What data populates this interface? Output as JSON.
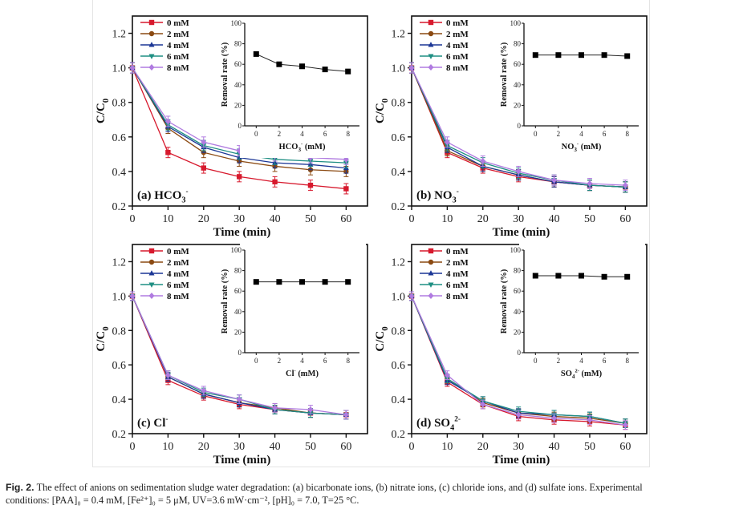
{
  "caption": {
    "label": "Fig. 2.",
    "line1": "The effect of anions on sedimentation sludge water degradation: (a) bicarbonate ions, (b) nitrate ions, (c) chloride ions, and (d) sulfate ions. Experimental",
    "line2": "conditions: [PAA]₀ = 0.4 mM, [Fe²⁺]₀ = 5 μM, UV=3.6 mW·cm⁻², [pH]₀ = 7.0, T=25 °C."
  },
  "series_style": [
    {
      "name": "0 mM",
      "color": "#d7192d",
      "marker": "square"
    },
    {
      "name": "2 mM",
      "color": "#8b4a12",
      "marker": "circle"
    },
    {
      "name": "4 mM",
      "color": "#1c3796",
      "marker": "triangle-up"
    },
    {
      "name": "6 mM",
      "color": "#1f8f83",
      "marker": "triangle-down"
    },
    {
      "name": "8 mM",
      "color": "#b07be0",
      "marker": "diamond"
    }
  ],
  "chart_data": [
    {
      "id": "a",
      "type": "line",
      "panel_label": "(a) HCO",
      "panel_sub": "3",
      "panel_sup": "-",
      "xlabel": "Time (min)",
      "ylabel": "C/C",
      "ylabel_sub": "0",
      "xlim": [
        0,
        66
      ],
      "ylim": [
        0.2,
        1.3
      ],
      "xticks": [
        0,
        10,
        20,
        30,
        40,
        50,
        60
      ],
      "yticks": [
        0.2,
        0.4,
        0.6,
        0.8,
        1.0,
        1.2
      ],
      "ytick_labels": [
        "0.2",
        "0.4",
        "0.6",
        "0.8",
        "1.0",
        "1.2"
      ],
      "legend": [
        "0 mM",
        "2 mM",
        "4 mM",
        "6 mM",
        "8 mM"
      ],
      "legend_position": "top-left",
      "x": [
        0,
        10,
        20,
        30,
        40,
        50,
        60
      ],
      "series": [
        {
          "name": "0 mM",
          "values": [
            1.0,
            0.51,
            0.42,
            0.37,
            0.34,
            0.32,
            0.3
          ]
        },
        {
          "name": "2 mM",
          "values": [
            1.0,
            0.65,
            0.51,
            0.46,
            0.43,
            0.41,
            0.4
          ]
        },
        {
          "name": "4 mM",
          "values": [
            1.0,
            0.66,
            0.54,
            0.48,
            0.45,
            0.44,
            0.42
          ]
        },
        {
          "name": "6 mM",
          "values": [
            1.0,
            0.67,
            0.55,
            0.5,
            0.47,
            0.46,
            0.45
          ]
        },
        {
          "name": "8 mM",
          "values": [
            1.0,
            0.69,
            0.57,
            0.52,
            0.49,
            0.48,
            0.47
          ]
        }
      ],
      "error": 0.03,
      "inset": {
        "type": "line",
        "xlabel": "HCO",
        "xlabel_sub": "3",
        "xlabel_sup": "-",
        "xlabel_tail": " (mM)",
        "ylabel": "Removal rate (%)",
        "xlim": [
          -1,
          9
        ],
        "ylim": [
          0,
          100
        ],
        "xticks": [
          0,
          2,
          4,
          6,
          8
        ],
        "yticks": [
          0,
          20,
          40,
          60,
          80,
          100
        ],
        "x": [
          0,
          2,
          4,
          6,
          8
        ],
        "values": [
          70,
          60,
          58,
          55,
          53
        ]
      }
    },
    {
      "id": "b",
      "type": "line",
      "panel_label": "(b) NO",
      "panel_sub": "3",
      "panel_sup": "-",
      "xlabel": "Time (min)",
      "ylabel": "C/C",
      "ylabel_sub": "0",
      "xlim": [
        0,
        66
      ],
      "ylim": [
        0.2,
        1.3
      ],
      "xticks": [
        0,
        10,
        20,
        30,
        40,
        50,
        60
      ],
      "yticks": [
        0.2,
        0.4,
        0.6,
        0.8,
        1.0,
        1.2
      ],
      "ytick_labels": [
        "0.2",
        "0.4",
        "0.6",
        "0.8",
        "1.0",
        "1.2"
      ],
      "legend": [
        "0 mM",
        "2 mM",
        "4 mM",
        "6 mM",
        "8 mM"
      ],
      "legend_position": "top-left",
      "x": [
        0,
        10,
        20,
        30,
        40,
        50,
        60
      ],
      "series": [
        {
          "name": "0 mM",
          "values": [
            1.0,
            0.51,
            0.42,
            0.37,
            0.34,
            0.32,
            0.31
          ]
        },
        {
          "name": "2 mM",
          "values": [
            1.0,
            0.52,
            0.43,
            0.38,
            0.34,
            0.32,
            0.31
          ]
        },
        {
          "name": "4 mM",
          "values": [
            1.0,
            0.54,
            0.43,
            0.38,
            0.34,
            0.32,
            0.31
          ]
        },
        {
          "name": "6 mM",
          "values": [
            1.0,
            0.55,
            0.45,
            0.39,
            0.35,
            0.32,
            0.31
          ]
        },
        {
          "name": "8 mM",
          "values": [
            1.0,
            0.57,
            0.46,
            0.4,
            0.35,
            0.33,
            0.32
          ]
        }
      ],
      "error": 0.03,
      "inset": {
        "type": "line",
        "xlabel": "NO",
        "xlabel_sub": "3",
        "xlabel_sup": "-",
        "xlabel_tail": " (mM)",
        "ylabel": "Removal rate (%)",
        "xlim": [
          -1,
          9
        ],
        "ylim": [
          0,
          100
        ],
        "xticks": [
          0,
          2,
          4,
          6,
          8
        ],
        "yticks": [
          0,
          20,
          40,
          60,
          80,
          100
        ],
        "x": [
          0,
          2,
          4,
          6,
          8
        ],
        "values": [
          69,
          69,
          69,
          69,
          68
        ]
      }
    },
    {
      "id": "c",
      "type": "line",
      "panel_label": "(c) Cl",
      "panel_sub": "",
      "panel_sup": "-",
      "xlabel": "Time (min)",
      "ylabel": "C/C",
      "ylabel_sub": "0",
      "xlim": [
        0,
        66
      ],
      "ylim": [
        0.2,
        1.3
      ],
      "xticks": [
        0,
        10,
        20,
        30,
        40,
        50,
        60
      ],
      "yticks": [
        0.2,
        0.4,
        0.6,
        0.8,
        1.0,
        1.2
      ],
      "ytick_labels": [
        "0.2",
        "0.4",
        "0.6",
        "0.8",
        "1.0",
        "1.2"
      ],
      "legend": [
        "0 mM",
        "2 mM",
        "4 mM",
        "6 mM",
        "8 mM"
      ],
      "legend_position": "top-left",
      "x": [
        0,
        10,
        20,
        30,
        40,
        50,
        60
      ],
      "series": [
        {
          "name": "0 mM",
          "values": [
            1.0,
            0.51,
            0.42,
            0.37,
            0.34,
            0.32,
            0.31
          ]
        },
        {
          "name": "2 mM",
          "values": [
            1.0,
            0.53,
            0.43,
            0.38,
            0.35,
            0.32,
            0.31
          ]
        },
        {
          "name": "4 mM",
          "values": [
            1.0,
            0.53,
            0.43,
            0.38,
            0.34,
            0.32,
            0.31
          ]
        },
        {
          "name": "6 mM",
          "values": [
            1.0,
            0.54,
            0.44,
            0.4,
            0.34,
            0.32,
            0.31
          ]
        },
        {
          "name": "8 mM",
          "values": [
            1.0,
            0.54,
            0.45,
            0.4,
            0.35,
            0.34,
            0.31
          ]
        }
      ],
      "error": 0.025,
      "inset": {
        "type": "line",
        "xlabel": "Cl",
        "xlabel_sub": "",
        "xlabel_sup": "-",
        "xlabel_tail": " (mM)",
        "ylabel": "Removal rate (%)",
        "xlim": [
          -1,
          9
        ],
        "ylim": [
          0,
          100
        ],
        "xticks": [
          0,
          2,
          4,
          6,
          8
        ],
        "yticks": [
          0,
          20,
          40,
          60,
          80,
          100
        ],
        "x": [
          0,
          2,
          4,
          6,
          8
        ],
        "values": [
          69,
          69,
          69,
          69,
          69
        ]
      }
    },
    {
      "id": "d",
      "type": "line",
      "panel_label": "(d) SO",
      "panel_sub": "4",
      "panel_sup": "2-",
      "xlabel": "Time (min)",
      "ylabel": "C/C",
      "ylabel_sub": "0",
      "xlim": [
        0,
        66
      ],
      "ylim": [
        0.2,
        1.3
      ],
      "xticks": [
        0,
        10,
        20,
        30,
        40,
        50,
        60
      ],
      "yticks": [
        0.2,
        0.4,
        0.6,
        0.8,
        1.0,
        1.2
      ],
      "ytick_labels": [
        "0.2",
        "0.4",
        "0.6",
        "0.8",
        "1.0",
        "1.2"
      ],
      "legend": [
        "0 mM",
        "2 mM",
        "4 mM",
        "6 mM",
        "8 mM"
      ],
      "legend_position": "top-left",
      "x": [
        0,
        10,
        20,
        30,
        40,
        50,
        60
      ],
      "series": [
        {
          "name": "0 mM",
          "values": [
            1.0,
            0.5,
            0.37,
            0.3,
            0.28,
            0.27,
            0.25
          ]
        },
        {
          "name": "2 mM",
          "values": [
            1.0,
            0.52,
            0.38,
            0.32,
            0.3,
            0.29,
            0.26
          ]
        },
        {
          "name": "4 mM",
          "values": [
            1.0,
            0.51,
            0.39,
            0.32,
            0.31,
            0.3,
            0.26
          ]
        },
        {
          "name": "6 mM",
          "values": [
            1.0,
            0.52,
            0.39,
            0.33,
            0.31,
            0.3,
            0.26
          ]
        },
        {
          "name": "8 mM",
          "values": [
            1.0,
            0.54,
            0.37,
            0.31,
            0.29,
            0.28,
            0.25
          ]
        }
      ],
      "error": 0.025,
      "inset": {
        "type": "line",
        "xlabel": "SO",
        "xlabel_sub": "4",
        "xlabel_sup": "2-",
        "xlabel_tail": " (mM)",
        "ylabel": "Removal rate (%)",
        "xlim": [
          -1,
          9
        ],
        "ylim": [
          0,
          100
        ],
        "xticks": [
          0,
          2,
          4,
          6,
          8
        ],
        "yticks": [
          0,
          20,
          40,
          60,
          80,
          100
        ],
        "x": [
          0,
          2,
          4,
          6,
          8
        ],
        "values": [
          75,
          75,
          75,
          74,
          74
        ]
      }
    }
  ]
}
